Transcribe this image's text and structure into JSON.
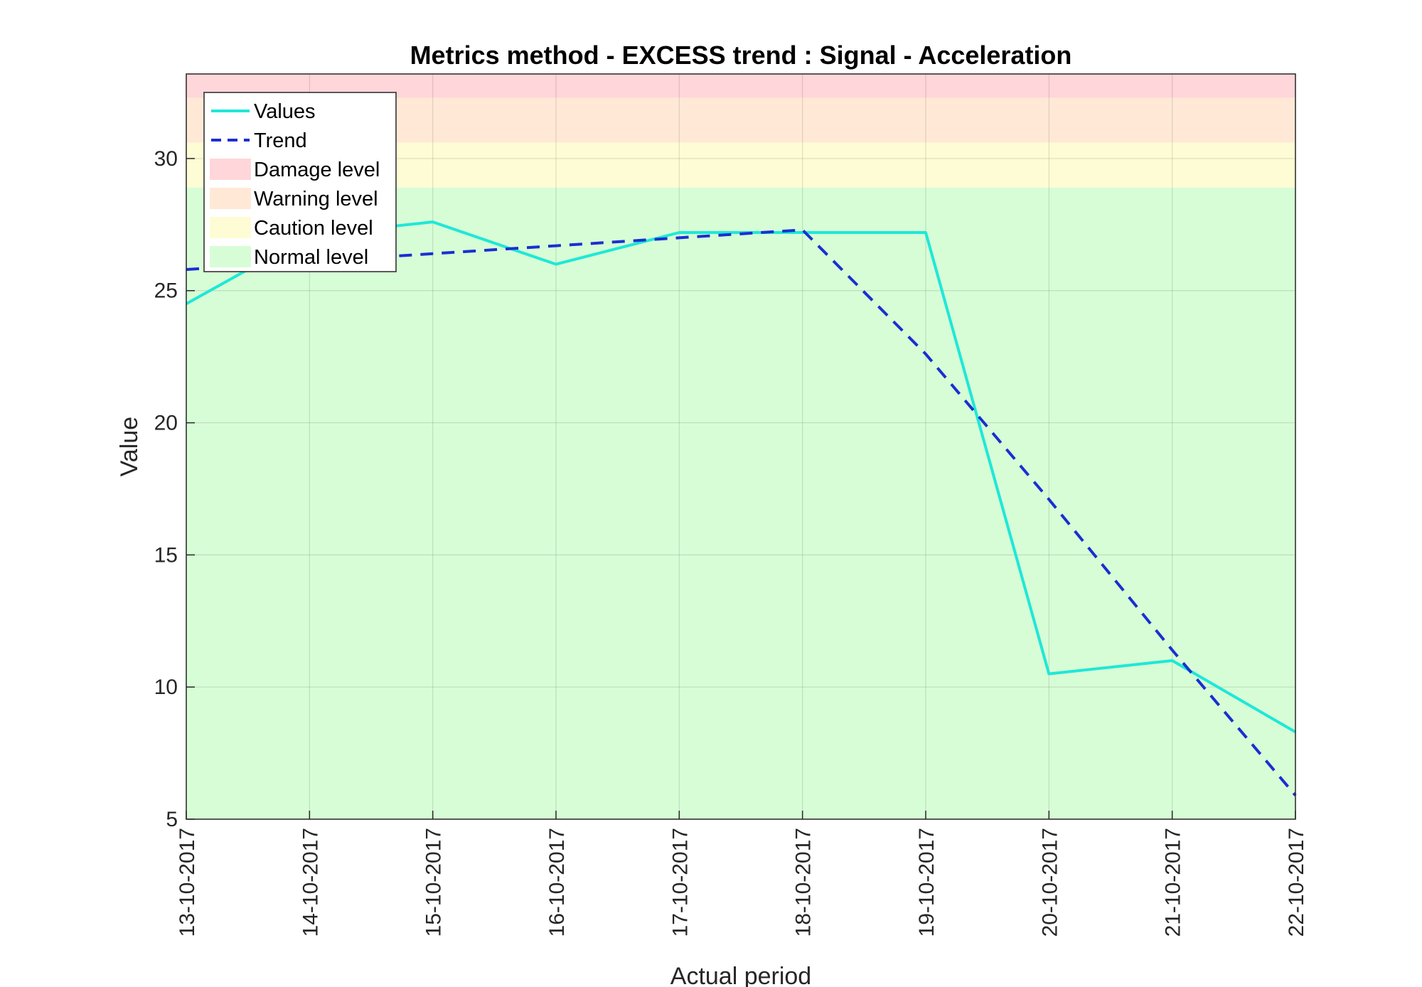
{
  "chart_data": {
    "type": "line",
    "title": "Metrics method - EXCESS trend : Signal - Acceleration",
    "xlabel": "Actual period",
    "ylabel": "Value",
    "categories": [
      "13-10-2017",
      "14-10-2017",
      "15-10-2017",
      "16-10-2017",
      "17-10-2017",
      "18-10-2017",
      "19-10-2017",
      "20-10-2017",
      "21-10-2017",
      "22-10-2017"
    ],
    "series": [
      {
        "name": "Values",
        "style": "solid",
        "color": "#1ee8d8",
        "values": [
          24.5,
          27.1,
          27.6,
          26.0,
          27.2,
          27.2,
          27.2,
          10.5,
          11.0,
          8.3
        ]
      },
      {
        "name": "Trend",
        "style": "dashed",
        "color": "#1a2fd0",
        "values": [
          25.8,
          26.1,
          26.4,
          26.7,
          27.0,
          27.3,
          22.6,
          17.1,
          11.4,
          5.9
        ]
      }
    ],
    "bands": [
      {
        "name": "Damage level",
        "from": 32.3,
        "to": 33.2,
        "color": "#ffd6d9"
      },
      {
        "name": "Warning level",
        "from": 30.6,
        "to": 32.3,
        "color": "#ffe9d6"
      },
      {
        "name": "Caution level",
        "from": 28.9,
        "to": 30.6,
        "color": "#fefcd4"
      },
      {
        "name": "Normal level",
        "from": 5,
        "to": 28.9,
        "color": "#d7fdd6"
      }
    ],
    "legend_order": [
      "Values",
      "Trend",
      "Damage level",
      "Warning level",
      "Caution level",
      "Normal level"
    ],
    "yticks": [
      5,
      10,
      15,
      20,
      25,
      30
    ],
    "ylim": [
      5,
      33.2
    ],
    "grid": true,
    "legend_position": "top-left"
  }
}
